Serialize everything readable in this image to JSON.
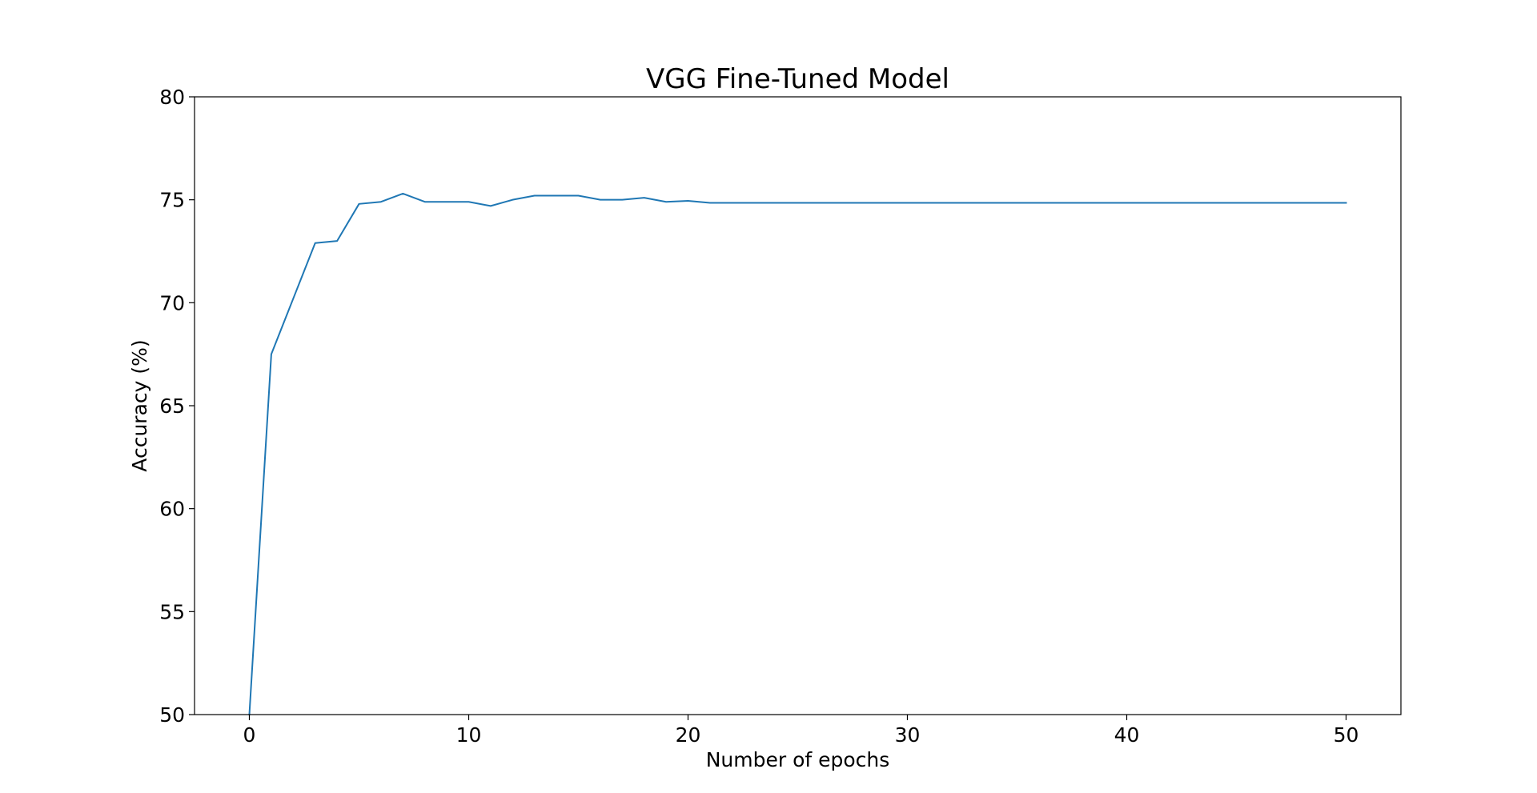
{
  "chart_data": {
    "type": "line",
    "title": "VGG Fine-Tuned Model",
    "xlabel": "Number of epochs",
    "ylabel": "Accuracy (%)",
    "xlim": [
      -2.5,
      52.5
    ],
    "ylim": [
      50,
      80
    ],
    "xticks": [
      0,
      10,
      20,
      30,
      40,
      50
    ],
    "yticks": [
      50,
      55,
      60,
      65,
      70,
      75,
      80
    ],
    "grid": false,
    "series": [
      {
        "color": "#1f77b4",
        "x": [
          0,
          1,
          2,
          3,
          4,
          5,
          6,
          7,
          8,
          9,
          10,
          11,
          12,
          13,
          14,
          15,
          16,
          17,
          18,
          19,
          20,
          21,
          22,
          23,
          24,
          25,
          26,
          27,
          28,
          29,
          30,
          31,
          32,
          33,
          34,
          35,
          36,
          37,
          38,
          39,
          40,
          41,
          42,
          43,
          44,
          45,
          46,
          47,
          48,
          49,
          50
        ],
        "values": [
          50.0,
          67.5,
          70.2,
          72.9,
          73.0,
          74.8,
          74.9,
          75.3,
          74.9,
          74.9,
          74.9,
          74.7,
          75.0,
          75.2,
          75.2,
          75.2,
          75.0,
          75.0,
          75.1,
          74.9,
          74.95,
          74.85,
          74.85,
          74.85,
          74.85,
          74.85,
          74.85,
          74.85,
          74.85,
          74.85,
          74.85,
          74.85,
          74.85,
          74.85,
          74.85,
          74.85,
          74.85,
          74.85,
          74.85,
          74.85,
          74.85,
          74.85,
          74.85,
          74.85,
          74.85,
          74.85,
          74.85,
          74.85,
          74.85,
          74.85,
          74.85
        ]
      }
    ]
  }
}
